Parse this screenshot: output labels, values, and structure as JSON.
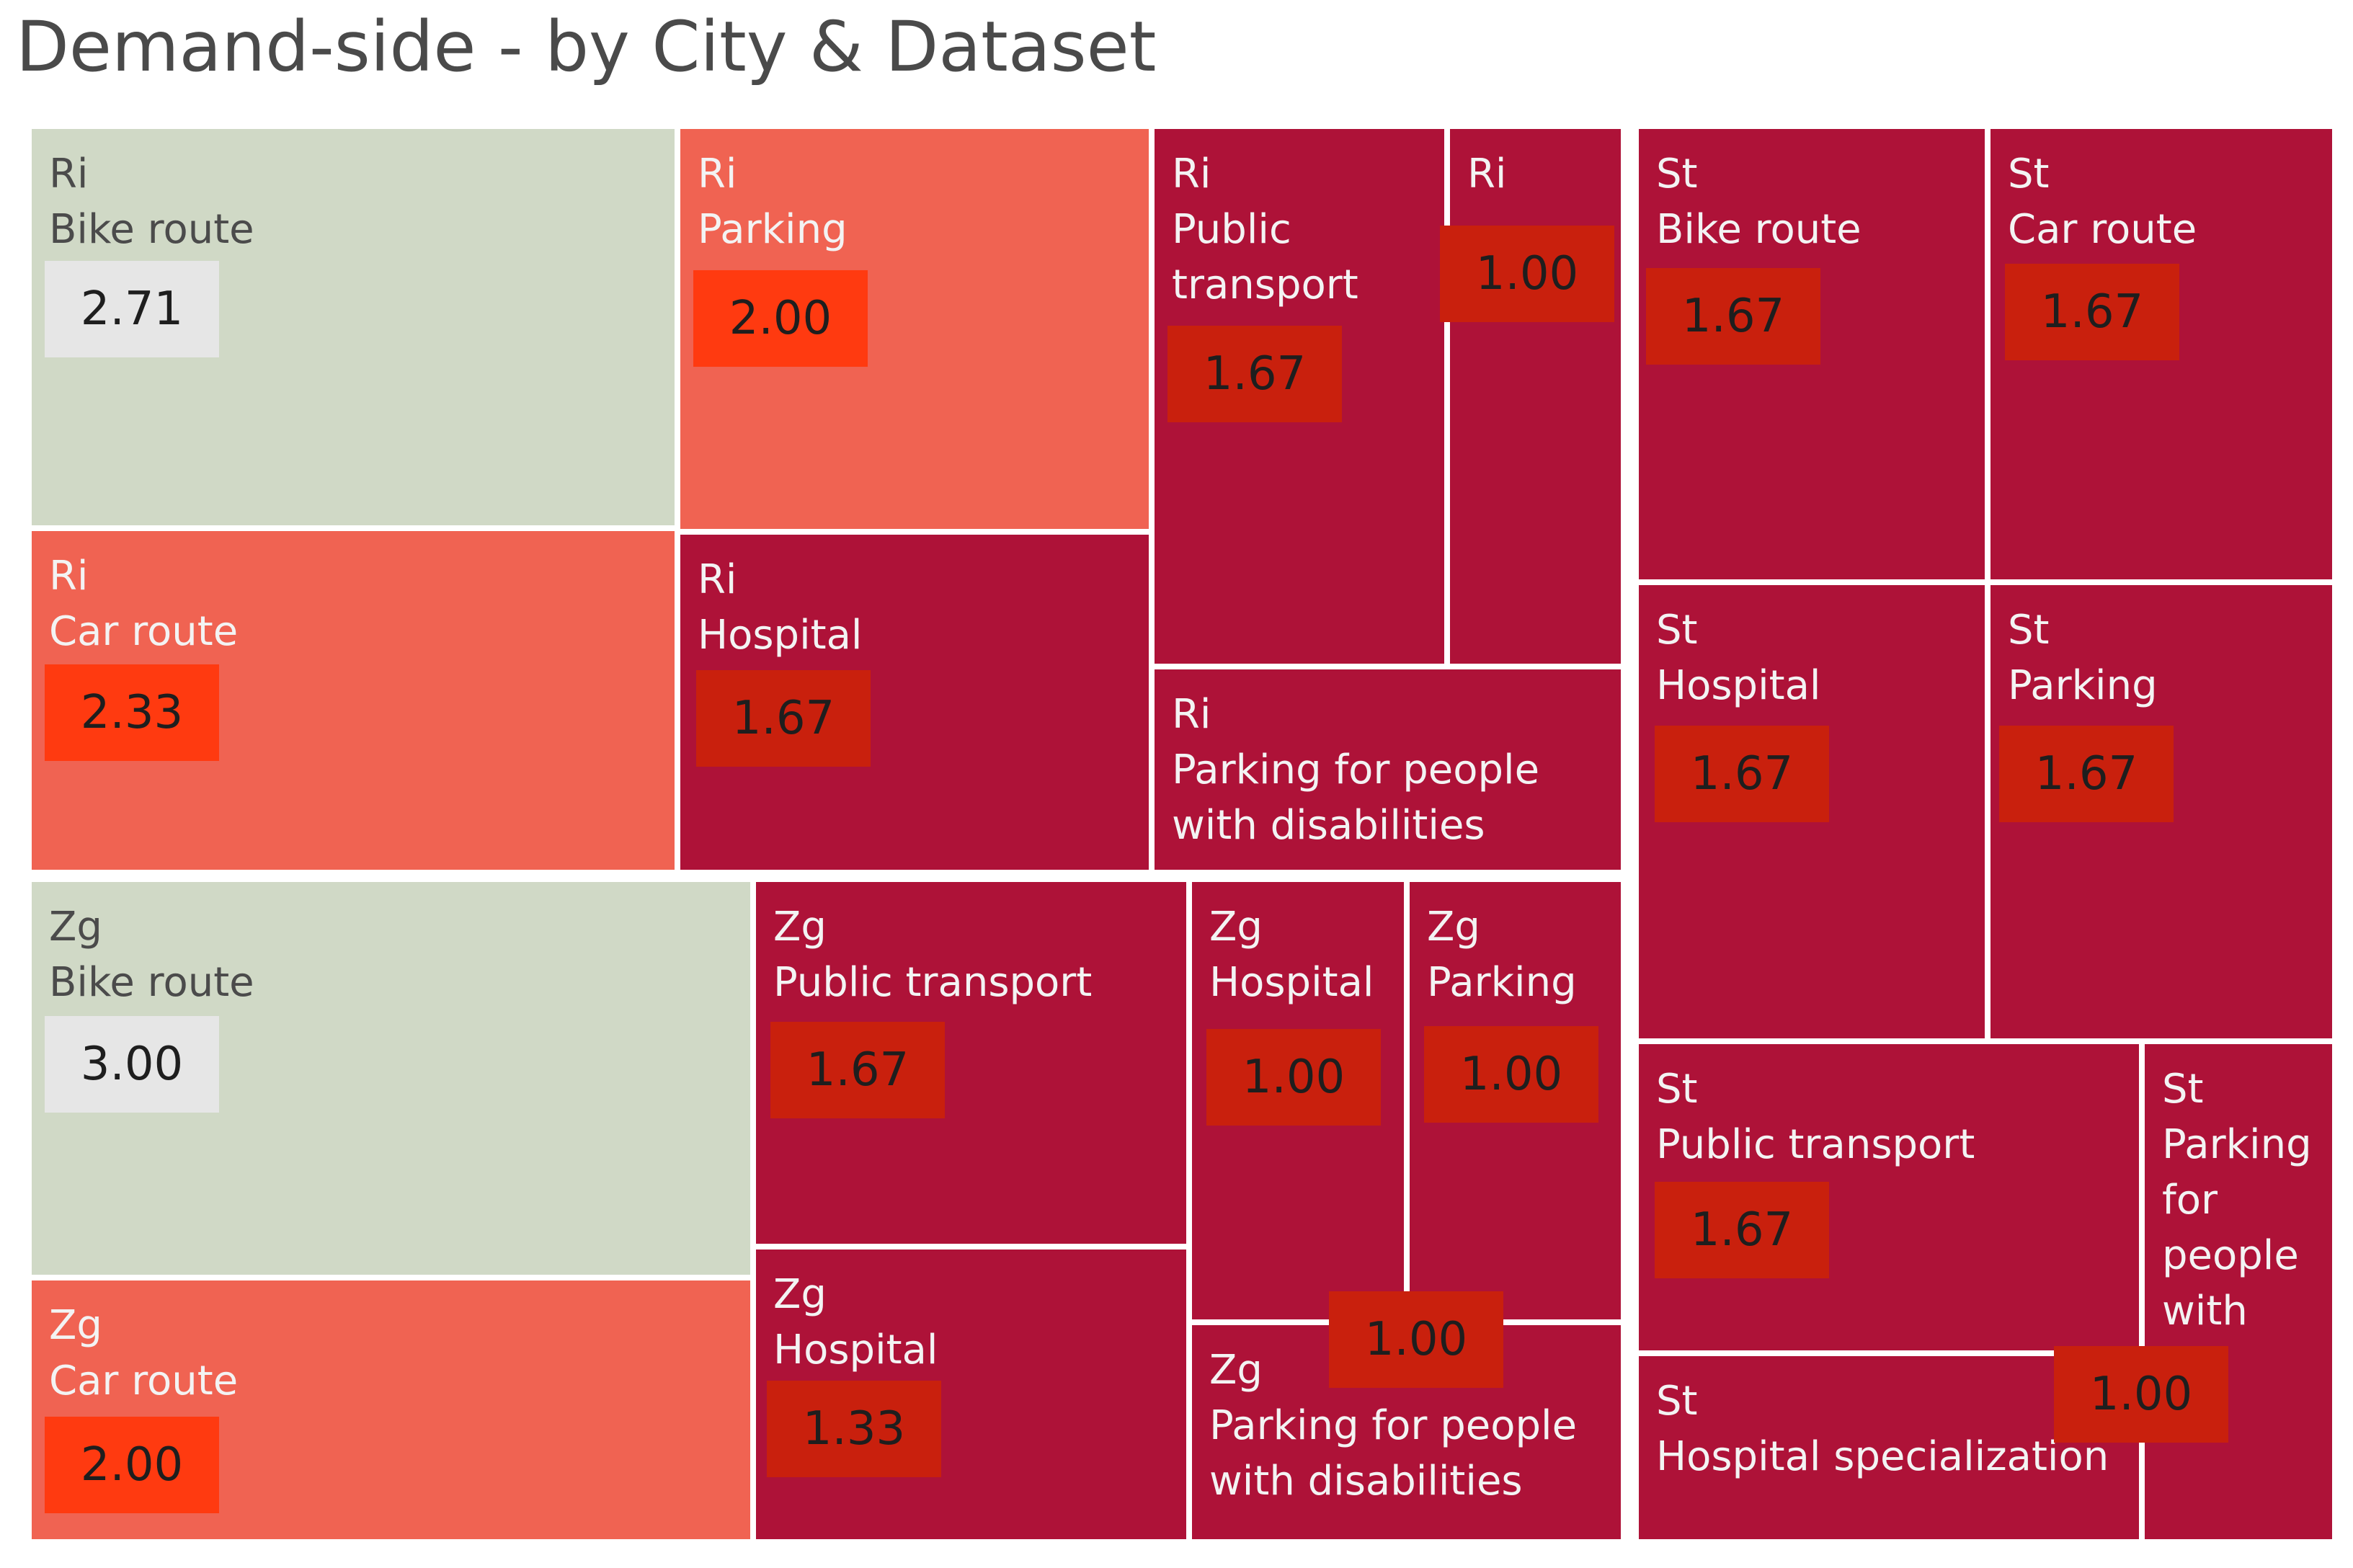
{
  "header": {
    "title": "Demand-side - by City & Dataset"
  },
  "chart_data": {
    "type": "treemap",
    "title": "Demand-side - by City & Dataset",
    "size_and_color_encoding": "value",
    "colors": {
      "3.00": "#d0d9c6",
      "2.71": "#d0d9c6",
      "2.33": "#f06352",
      "2.00": "#f06352",
      "1.67": "#ae1238",
      "1.33": "#ae1238",
      "1.00": "#ae1238",
      "badge_default": "#c9200d",
      "badge_high": "#ff3a10",
      "badge_light": "#e6e6e6"
    },
    "items": [
      {
        "city": "Ri",
        "dataset": "Bike route",
        "label_lines": [
          "Ri",
          "Bike route"
        ],
        "value": "2.71"
      },
      {
        "city": "Ri",
        "dataset": "Car route",
        "label_lines": [
          "Ri",
          "Car route"
        ],
        "value": "2.33"
      },
      {
        "city": "Ri",
        "dataset": "Parking",
        "label_lines": [
          "Ri",
          "Parking"
        ],
        "value": "2.00"
      },
      {
        "city": "Ri",
        "dataset": "Hospital",
        "label_lines": [
          "Ri",
          "Hospital"
        ],
        "value": "1.67"
      },
      {
        "city": "Ri",
        "dataset": "Public transport",
        "label_lines": [
          "Ri",
          "Public",
          "transport"
        ],
        "value": "1.67"
      },
      {
        "city": "Ri",
        "dataset": "",
        "label_lines": [
          "Ri"
        ],
        "value": "1.00"
      },
      {
        "city": "Ri",
        "dataset": "Parking for people with disabilities",
        "label_lines": [
          "Ri",
          "Parking for people",
          "with disabilities"
        ],
        "value": ""
      },
      {
        "city": "Zg",
        "dataset": "Bike route",
        "label_lines": [
          "Zg",
          "Bike route"
        ],
        "value": "3.00"
      },
      {
        "city": "Zg",
        "dataset": "Car route",
        "label_lines": [
          "Zg",
          "Car route"
        ],
        "value": "2.00"
      },
      {
        "city": "Zg",
        "dataset": "Public transport",
        "label_lines": [
          "Zg",
          "Public transport"
        ],
        "value": "1.67"
      },
      {
        "city": "Zg",
        "dataset": "Hospital",
        "label_lines": [
          "Zg",
          "Hospital"
        ],
        "value": "1.33"
      },
      {
        "city": "Zg",
        "dataset": "Hospital",
        "label_lines": [
          "Zg",
          "Hospital"
        ],
        "value": "1.00"
      },
      {
        "city": "Zg",
        "dataset": "Parking",
        "label_lines": [
          "Zg",
          "Parking"
        ],
        "value": "1.00"
      },
      {
        "city": "Zg",
        "dataset": "Parking for people with disabilities",
        "label_lines": [
          "Zg",
          "Parking for people",
          "with disabilities"
        ],
        "value": "1.00"
      },
      {
        "city": "St",
        "dataset": "Bike route",
        "label_lines": [
          "St",
          "Bike route"
        ],
        "value": "1.67"
      },
      {
        "city": "St",
        "dataset": "Car route",
        "label_lines": [
          "St",
          "Car route"
        ],
        "value": "1.67"
      },
      {
        "city": "St",
        "dataset": "Hospital",
        "label_lines": [
          "St",
          "Hospital"
        ],
        "value": "1.67"
      },
      {
        "city": "St",
        "dataset": "Parking",
        "label_lines": [
          "St",
          "Parking"
        ],
        "value": "1.67"
      },
      {
        "city": "St",
        "dataset": "Public transport",
        "label_lines": [
          "St",
          "Public transport"
        ],
        "value": "1.67"
      },
      {
        "city": "St",
        "dataset": "Parking for people with",
        "label_lines": [
          "St",
          "Parking",
          "for",
          "people",
          "with"
        ],
        "value": "1.00"
      },
      {
        "city": "St",
        "dataset": "Hospital specialization",
        "label_lines": [
          "St",
          "Hospital specialization"
        ],
        "value": ""
      }
    ]
  }
}
